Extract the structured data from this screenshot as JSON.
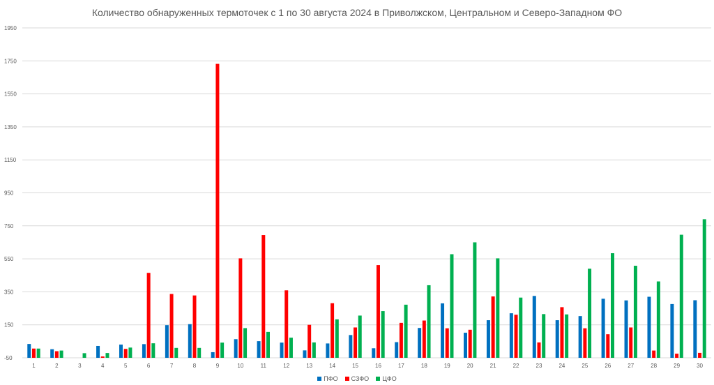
{
  "chart_data": {
    "type": "bar",
    "title": "Количество обнаруженных термоточек с 1 по 30 августа 2024 в Приволжском, Центральном и Северо-Западном ФО",
    "xlabel": "",
    "ylabel": "",
    "ylim": [
      -50,
      1950
    ],
    "yticks": [
      "-50",
      "150",
      "350",
      "550",
      "750",
      "950",
      "1150",
      "1350",
      "1550",
      "1750",
      "1950"
    ],
    "grid": true,
    "legend_position": "bottom",
    "categories": [
      "1",
      "2",
      "3",
      "4",
      "5",
      "6",
      "7",
      "8",
      "9",
      "10",
      "11",
      "12",
      "13",
      "14",
      "15",
      "16",
      "17",
      "18",
      "19",
      "20",
      "21",
      "22",
      "23",
      "24",
      "25",
      "26",
      "27",
      "28",
      "29",
      "30"
    ],
    "series": [
      {
        "name": "ПФО",
        "color": "#0070C0",
        "values": [
          34,
          2,
          -50,
          22,
          30,
          33,
          148,
          154,
          -16,
          63,
          51,
          42,
          -5,
          37,
          88,
          8,
          45,
          131,
          280,
          102,
          178,
          220,
          325,
          178,
          203,
          308,
          298,
          320,
          276,
          299
        ]
      },
      {
        "name": "СЗФО",
        "color": "#FF0000",
        "values": [
          6,
          -10,
          -50,
          -42,
          4,
          465,
          337,
          328,
          1732,
          553,
          694,
          359,
          150,
          281,
          134,
          512,
          162,
          176,
          129,
          120,
          322,
          211,
          43,
          257,
          129,
          93,
          134,
          -6,
          -25,
          -20
        ]
      },
      {
        "name": "ЦФО",
        "color": "#00B050",
        "values": [
          6,
          -6,
          -22,
          -21,
          12,
          38,
          10,
          10,
          42,
          130,
          107,
          72,
          43,
          183,
          206,
          233,
          272,
          390,
          578,
          650,
          553,
          315,
          215,
          213,
          490,
          584,
          508,
          413,
          696,
          790
        ]
      }
    ]
  }
}
